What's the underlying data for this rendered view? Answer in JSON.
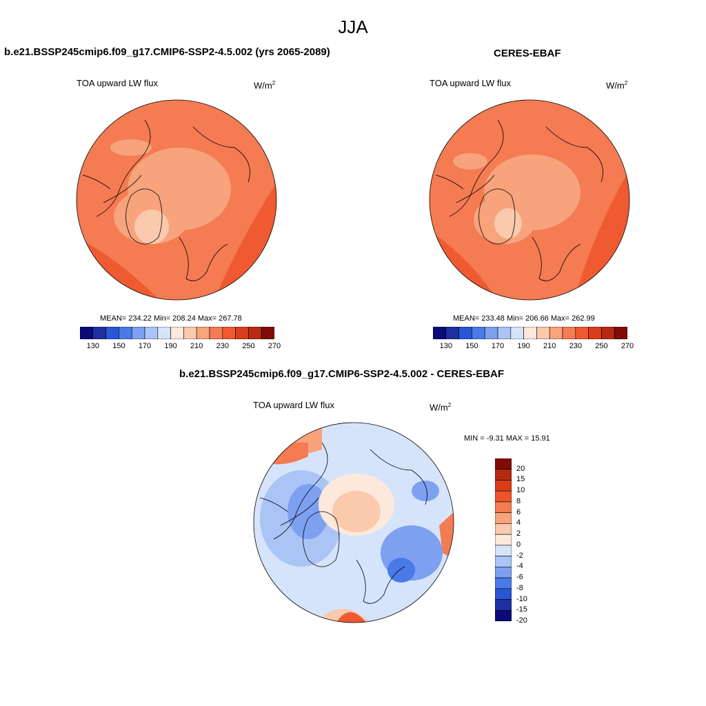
{
  "page_title": "JJA",
  "panels": [
    {
      "heading": "b.e21.BSSP245cmip6.f09_g17.CMIP6-SSP2-4.5.002 (yrs 2065-2089)",
      "variable": "TOA upward LW flux",
      "units_base": "W/m",
      "units_exp": "2",
      "stats": "MEAN= 234.22  Min= 208.24  Max= 267.78",
      "colorbar_ticks": [
        "130",
        "150",
        "170",
        "190",
        "210",
        "230",
        "250",
        "270"
      ]
    },
    {
      "heading": "CERES-EBAF",
      "variable": "TOA upward LW flux",
      "units_base": "W/m",
      "units_exp": "2",
      "stats": "MEAN= 233.48  Min= 206.66  Max= 262.99",
      "colorbar_ticks": [
        "130",
        "150",
        "170",
        "190",
        "210",
        "230",
        "250",
        "270"
      ]
    },
    {
      "heading": "b.e21.BSSP245cmip6.f09_g17.CMIP6-SSP2-4.5.002 - CERES-EBAF",
      "variable": "TOA upward LW flux",
      "units_base": "W/m",
      "units_exp": "2",
      "stats": "MIN =  -9.31 MAX =  15.91",
      "colorbar_ticks": [
        "20",
        "15",
        "10",
        "8",
        "6",
        "4",
        "2",
        "0",
        "-2",
        "-4",
        "-6",
        "-8",
        "-10",
        "-15",
        "-20"
      ]
    }
  ],
  "colors": {
    "abs_scale": [
      "#0a0a78",
      "#1e2fa0",
      "#2a56d6",
      "#4a7ae8",
      "#7da0f0",
      "#aac4f6",
      "#d6e4fb",
      "#fde8dc",
      "#fbc9ad",
      "#f7a37c",
      "#f47b52",
      "#ef5a30",
      "#d93d1a",
      "#b52a10",
      "#800a05"
    ],
    "diff_scale": [
      "#800a05",
      "#b52a10",
      "#d93d1a",
      "#f0532a",
      "#f47b52",
      "#f7a37c",
      "#fbc9ad",
      "#fde8dc",
      "#d6e4fb",
      "#aac4f6",
      "#7da0f0",
      "#4a7ae8",
      "#2a56d6",
      "#1e2fa0",
      "#0a0a78"
    ]
  }
}
